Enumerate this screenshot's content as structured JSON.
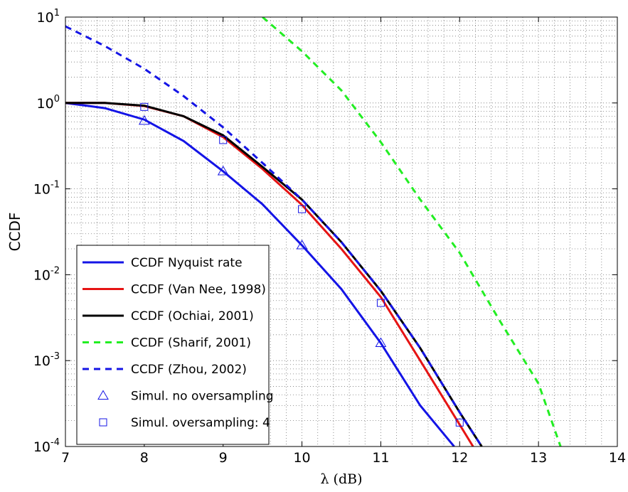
{
  "chart_data": {
    "type": "line",
    "x_label": "λ (dB)",
    "y_label": "CCDF",
    "xlim": [
      7,
      14
    ],
    "xticks": [
      7,
      8,
      9,
      10,
      11,
      12,
      13,
      14
    ],
    "ylim": [
      0.0001,
      10
    ],
    "log_y": true,
    "yticks": [
      {
        "value": 0.0001,
        "label": "10^-4"
      },
      {
        "value": 0.001,
        "label": "10^-3"
      },
      {
        "value": 0.01,
        "label": "10^-2"
      },
      {
        "value": 0.1,
        "label": "10^-1"
      },
      {
        "value": 1,
        "label": "10^0"
      },
      {
        "value": 10,
        "label": "10^1"
      }
    ],
    "grid": true,
    "legend": "lower left",
    "series": [
      {
        "name": "CCDF Nyquist rate",
        "color": "#1414e6",
        "style": "solid",
        "x": [
          7,
          7.5,
          8,
          8.5,
          9,
          9.5,
          10,
          10.5,
          11,
          11.5,
          11.93
        ],
        "values": [
          1.0,
          0.87,
          0.64,
          0.36,
          0.16,
          0.066,
          0.022,
          0.0068,
          0.0016,
          0.0003,
          0.0001
        ]
      },
      {
        "name": "CCDF (Van Nee, 1998)",
        "color": "#e61414",
        "style": "solid",
        "x": [
          7,
          7.5,
          8,
          8.5,
          9,
          9.5,
          10,
          10.5,
          11,
          11.5,
          12,
          12.17
        ],
        "values": [
          1.0,
          1.0,
          0.92,
          0.7,
          0.4,
          0.17,
          0.065,
          0.02,
          0.0055,
          0.001,
          0.00018,
          0.0001
        ]
      },
      {
        "name": "CCDF (Ochiai, 2001)",
        "color": "#000000",
        "style": "solid",
        "x": [
          7,
          7.5,
          8,
          8.5,
          9,
          9.5,
          10,
          10.5,
          11,
          11.5,
          12,
          12.28
        ],
        "values": [
          1.0,
          1.0,
          0.93,
          0.7,
          0.42,
          0.18,
          0.075,
          0.024,
          0.0065,
          0.0014,
          0.00025,
          0.0001
        ]
      },
      {
        "name": "CCDF (Sharif, 2001)",
        "color": "#22ee22",
        "style": "dashed",
        "x": [
          9.5,
          10,
          10.5,
          11,
          11.5,
          12,
          12.5,
          13,
          13.28
        ],
        "values": [
          10,
          4,
          1.4,
          0.35,
          0.075,
          0.018,
          0.003,
          0.00054,
          0.0001
        ]
      },
      {
        "name": "CCDF (Zhou, 2002)",
        "color": "#1414e6",
        "style": "dashed",
        "x": [
          7,
          7.5,
          8,
          8.5,
          9,
          9.5,
          10,
          10.5,
          11,
          11.5,
          12,
          12.28
        ],
        "values": [
          7.8,
          4.6,
          2.5,
          1.2,
          0.52,
          0.2,
          0.075,
          0.024,
          0.0065,
          0.0014,
          0.00025,
          0.0001
        ]
      },
      {
        "name": "Simul. no oversampling",
        "color": "#1414e6",
        "style": "triangle",
        "x": [
          8,
          9,
          10,
          11
        ],
        "values": [
          0.62,
          0.16,
          0.022,
          0.0016
        ]
      },
      {
        "name": "Simul. oversampling: 4",
        "color": "#1414e6",
        "style": "square",
        "x": [
          8,
          9,
          10,
          11,
          12
        ],
        "values": [
          0.9,
          0.37,
          0.058,
          0.0047,
          0.00019
        ]
      }
    ]
  }
}
